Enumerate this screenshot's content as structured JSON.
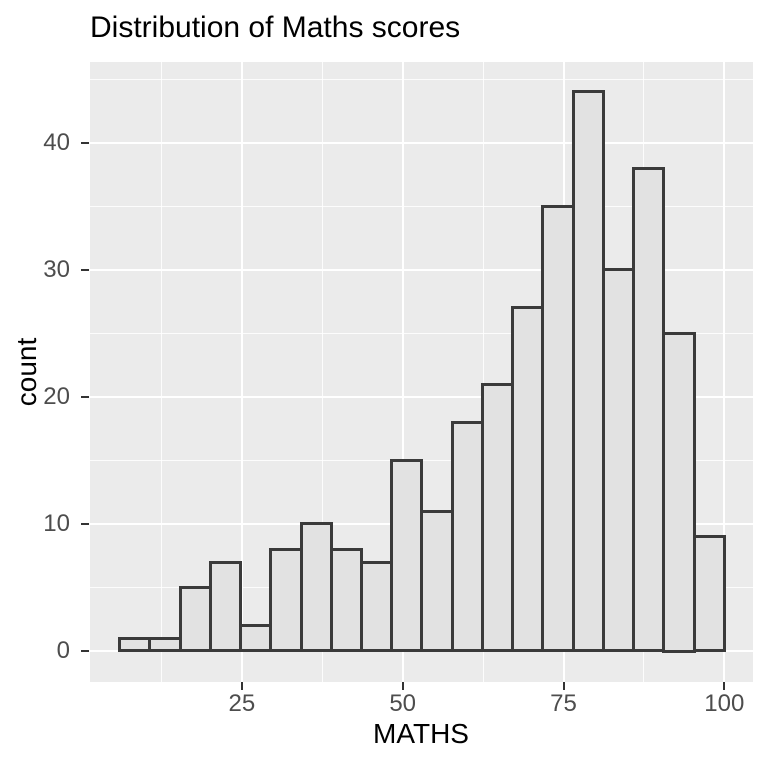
{
  "title": "Distribution of Maths scores",
  "colors": {
    "panel_bg": "#EBEBEB",
    "bar_fill": "#E2E2E2",
    "bar_border": "#3A3A3A",
    "gridline": "#FFFFFF",
    "tick_mark": "#333333",
    "tick_label": "#4D4D4D",
    "title_text": "#000000"
  },
  "chart_data": {
    "type": "bar",
    "subtype": "histogram",
    "title": "Distribution of Maths scores",
    "xlabel": "MATHS",
    "ylabel": "count",
    "bin_edges": [
      6,
      10.7,
      15.4,
      20.1,
      24.8,
      29.5,
      34.2,
      38.9,
      43.6,
      48.3,
      53.0,
      57.7,
      62.4,
      67.1,
      71.8,
      76.5,
      81.2,
      85.9,
      90.6,
      95.3,
      100
    ],
    "counts": [
      1,
      1,
      5,
      7,
      2,
      8,
      10,
      8,
      7,
      15,
      11,
      18,
      21,
      27,
      35,
      44,
      30,
      38,
      25,
      9
    ],
    "x_ticks": [
      25,
      50,
      75,
      100
    ],
    "y_ticks": [
      0,
      10,
      20,
      30,
      40
    ],
    "x_minor_ticks": [
      12.5,
      37.5,
      62.5,
      87.5
    ],
    "y_minor_ticks": [
      5,
      15,
      25,
      35,
      45
    ],
    "xlim": [
      1.4,
      104.5
    ],
    "ylim": [
      -2.4,
      46.4
    ],
    "grid": true,
    "legend": "none",
    "total_count": 322
  }
}
